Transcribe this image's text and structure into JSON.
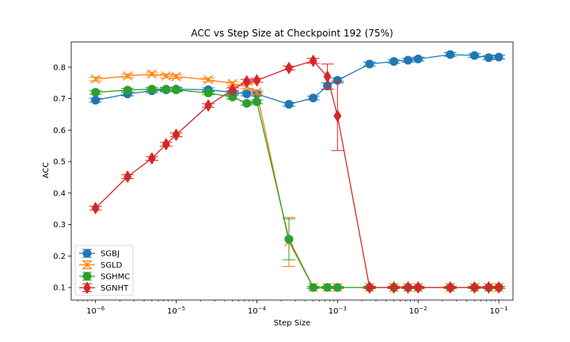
{
  "chart_data": {
    "type": "line",
    "title": "ACC vs Step Size at Checkpoint 192 (75%)",
    "xlabel": "Step Size",
    "ylabel": "ACC",
    "xscale": "log",
    "xlim": [
      5e-07,
      0.15
    ],
    "ylim": [
      0.06,
      0.88
    ],
    "xticks": [
      1e-06,
      1e-05,
      0.0001,
      0.001,
      0.01,
      0.1
    ],
    "xtick_labels": [
      {
        "base": "10",
        "exp": "−6"
      },
      {
        "base": "10",
        "exp": "−5"
      },
      {
        "base": "10",
        "exp": "−4"
      },
      {
        "base": "10",
        "exp": "−3"
      },
      {
        "base": "10",
        "exp": "−2"
      },
      {
        "base": "10",
        "exp": "−1"
      }
    ],
    "yticks": [
      0.1,
      0.2,
      0.3,
      0.4,
      0.5,
      0.6,
      0.7,
      0.8
    ],
    "ytick_labels": [
      "0.1",
      "0.2",
      "0.3",
      "0.4",
      "0.5",
      "0.6",
      "0.7",
      "0.8"
    ],
    "grid": false,
    "legend_position": "lower-left",
    "x": [
      1e-06,
      2.5e-06,
      5e-06,
      7.5e-06,
      1e-05,
      2.5e-05,
      5e-05,
      7.5e-05,
      0.0001,
      0.00025,
      0.0005,
      0.00075,
      0.001,
      0.0025,
      0.005,
      0.0075,
      0.01,
      0.025,
      0.05,
      0.075,
      0.1
    ],
    "series": [
      {
        "name": "SGBJ",
        "color": "#1f77b4",
        "marker": "circle",
        "values": [
          0.695,
          0.715,
          0.725,
          0.728,
          0.73,
          0.728,
          0.72,
          0.715,
          0.715,
          0.682,
          0.702,
          0.74,
          0.758,
          0.81,
          0.818,
          0.822,
          0.826,
          0.84,
          0.837,
          0.83,
          0.832
        ],
        "errors": [
          0.006,
          0.006,
          0.006,
          0.006,
          0.006,
          0.006,
          0.006,
          0.006,
          0.006,
          0.006,
          0.006,
          0.01,
          0.008,
          0.006,
          0.006,
          0.006,
          0.006,
          0.006,
          0.006,
          0.006,
          0.006
        ]
      },
      {
        "name": "SGLD",
        "color": "#ff7f0e",
        "marker": "x",
        "values": [
          0.762,
          0.772,
          0.778,
          0.772,
          0.77,
          0.76,
          0.748,
          0.738,
          0.72,
          0.245,
          0.1,
          0.1,
          0.1,
          0.1,
          0.1,
          0.1,
          0.1,
          0.1,
          0.1,
          0.1,
          0.1
        ],
        "errors": [
          0.006,
          0.006,
          0.006,
          0.006,
          0.006,
          0.006,
          0.006,
          0.006,
          0.006,
          0.078,
          0.003,
          0.003,
          0.003,
          0.003,
          0.003,
          0.003,
          0.003,
          0.003,
          0.003,
          0.003,
          0.003
        ]
      },
      {
        "name": "SGHMC",
        "color": "#2ca02c",
        "marker": "circle",
        "values": [
          0.72,
          0.727,
          0.73,
          0.73,
          0.728,
          0.718,
          0.705,
          0.685,
          0.69,
          0.253,
          0.1,
          0.1,
          0.1,
          0.1,
          0.1,
          0.1,
          0.1,
          0.1,
          0.1,
          0.1,
          0.1
        ],
        "errors": [
          0.006,
          0.006,
          0.006,
          0.006,
          0.006,
          0.006,
          0.006,
          0.006,
          0.006,
          0.065,
          0.003,
          0.003,
          0.003,
          0.003,
          0.003,
          0.003,
          0.003,
          0.003,
          0.003,
          0.003,
          0.003
        ]
      },
      {
        "name": "SGNHT",
        "color": "#d62728",
        "marker": "diamond",
        "values": [
          0.352,
          0.452,
          0.51,
          0.555,
          0.585,
          0.678,
          0.728,
          0.755,
          0.758,
          0.797,
          0.82,
          0.77,
          0.645,
          0.1,
          0.1,
          0.1,
          0.1,
          0.1,
          0.1,
          0.1,
          0.1
        ],
        "errors": [
          0.006,
          0.006,
          0.006,
          0.006,
          0.006,
          0.006,
          0.006,
          0.006,
          0.006,
          0.006,
          0.008,
          0.04,
          0.11,
          0.003,
          0.003,
          0.003,
          0.003,
          0.003,
          0.003,
          0.003,
          0.003
        ]
      }
    ]
  }
}
